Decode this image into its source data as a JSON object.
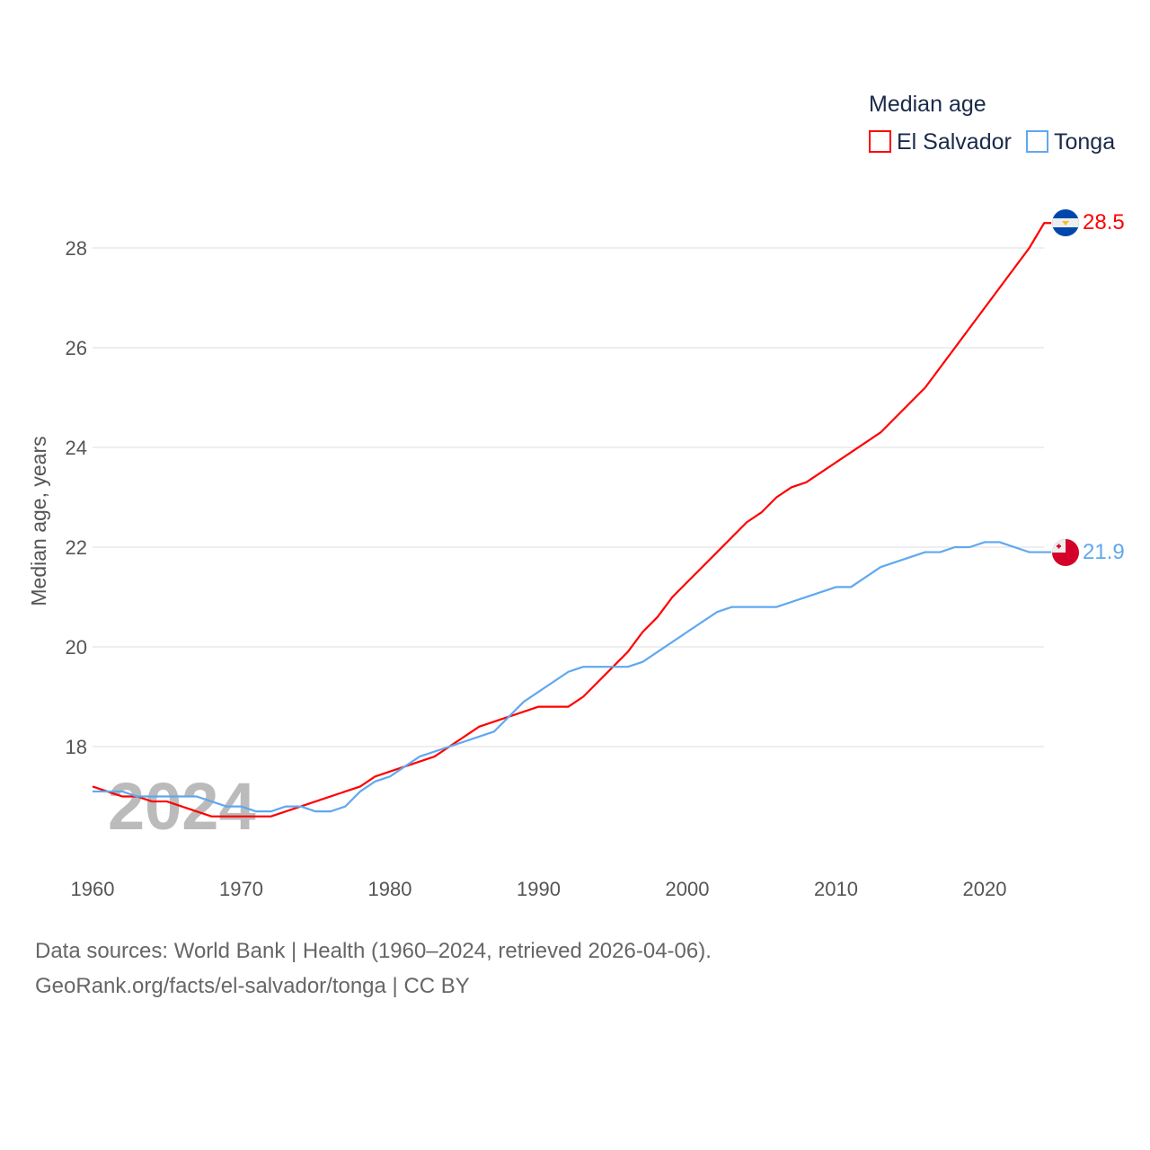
{
  "chart_data": {
    "type": "line",
    "ylabel": "Median age, years",
    "legend_title": "Median age",
    "legend_position": "top-right",
    "watermark_year": "2024",
    "xlim": [
      1960,
      2024
    ],
    "ylim": [
      15.75,
      29
    ],
    "x_ticks": [
      1960,
      1970,
      1980,
      1990,
      2000,
      2010,
      2020
    ],
    "y_ticks": [
      18,
      20,
      22,
      24,
      26,
      28
    ],
    "grid": true,
    "series": [
      {
        "name": "El Salvador",
        "color": "#ff0000",
        "end_label": "28.5",
        "points": [
          [
            1960,
            17.2
          ],
          [
            1962,
            17.0
          ],
          [
            1963,
            17.0
          ],
          [
            1964,
            16.9
          ],
          [
            1965,
            16.9
          ],
          [
            1968,
            16.6
          ],
          [
            1972,
            16.6
          ],
          [
            1975,
            16.9
          ],
          [
            1978,
            17.2
          ],
          [
            1979,
            17.4
          ],
          [
            1983,
            17.8
          ],
          [
            1986,
            18.4
          ],
          [
            1990,
            18.8
          ],
          [
            1992,
            18.8
          ],
          [
            1993,
            19.0
          ],
          [
            1996,
            19.9
          ],
          [
            1997,
            20.3
          ],
          [
            1998,
            20.6
          ],
          [
            1999,
            21.0
          ],
          [
            2002,
            21.9
          ],
          [
            2004,
            22.5
          ],
          [
            2005,
            22.7
          ],
          [
            2006,
            23.0
          ],
          [
            2007,
            23.2
          ],
          [
            2008,
            23.3
          ],
          [
            2013,
            24.3
          ],
          [
            2016,
            25.2
          ],
          [
            2023,
            28.0
          ],
          [
            2024,
            28.5
          ]
        ]
      },
      {
        "name": "Tonga",
        "color": "#5fa8f0",
        "end_label": "21.9",
        "points": [
          [
            1960,
            17.1
          ],
          [
            1962,
            17.1
          ],
          [
            1963,
            17.0
          ],
          [
            1967,
            17.0
          ],
          [
            1969,
            16.8
          ],
          [
            1970,
            16.8
          ],
          [
            1971,
            16.7
          ],
          [
            1972,
            16.7
          ],
          [
            1973,
            16.8
          ],
          [
            1974,
            16.8
          ],
          [
            1975,
            16.7
          ],
          [
            1976,
            16.7
          ],
          [
            1977,
            16.8
          ],
          [
            1978,
            17.1
          ],
          [
            1979,
            17.3
          ],
          [
            1980,
            17.4
          ],
          [
            1981,
            17.6
          ],
          [
            1982,
            17.8
          ],
          [
            1984,
            18.0
          ],
          [
            1987,
            18.3
          ],
          [
            1989,
            18.9
          ],
          [
            1992,
            19.5
          ],
          [
            1993,
            19.6
          ],
          [
            1996,
            19.6
          ],
          [
            1997,
            19.7
          ],
          [
            2002,
            20.7
          ],
          [
            2003,
            20.8
          ],
          [
            2006,
            20.8
          ],
          [
            2010,
            21.2
          ],
          [
            2011,
            21.2
          ],
          [
            2013,
            21.6
          ],
          [
            2016,
            21.9
          ],
          [
            2017,
            21.9
          ],
          [
            2018,
            22.0
          ],
          [
            2019,
            22.0
          ],
          [
            2020,
            22.1
          ],
          [
            2021,
            22.1
          ],
          [
            2023,
            21.9
          ],
          [
            2024,
            21.9
          ]
        ]
      }
    ]
  },
  "footer": {
    "line1": "Data sources: World Bank | Health (1960–2024, retrieved 2026-04-06).",
    "line2": "GeoRank.org/facts/el-salvador/tonga | CC BY"
  }
}
